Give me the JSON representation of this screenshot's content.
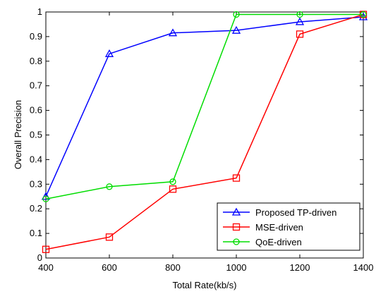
{
  "chart_data": {
    "type": "line",
    "xlabel": "Total Rate(kb/s)",
    "ylabel": "Overall Precision",
    "xlim": [
      400,
      1400
    ],
    "ylim": [
      0,
      1
    ],
    "xticks": [
      400,
      600,
      800,
      1000,
      1200,
      1400
    ],
    "yticks": [
      0,
      0.1,
      0.2,
      0.3,
      0.4,
      0.5,
      0.6,
      0.7,
      0.8,
      0.9,
      1
    ],
    "xtick_labels": [
      "400",
      "600",
      "800",
      "1000",
      "1200",
      "1400"
    ],
    "ytick_labels": [
      "0",
      "0.1",
      "0.2",
      "0.3",
      "0.4",
      "0.5",
      "0.6",
      "0.7",
      "0.8",
      "0.9",
      "1"
    ],
    "grid": false,
    "legend_position": "bottom-right",
    "x": [
      400,
      600,
      800,
      1000,
      1200,
      1400
    ],
    "series": [
      {
        "name": "Proposed TP-driven",
        "color": "#0000ff",
        "marker": "triangle",
        "values": [
          0.25,
          0.83,
          0.915,
          0.925,
          0.96,
          0.98
        ]
      },
      {
        "name": "MSE-driven",
        "color": "#ff0000",
        "marker": "square",
        "values": [
          0.035,
          0.085,
          0.28,
          0.325,
          0.91,
          0.99
        ]
      },
      {
        "name": "QoE-driven",
        "color": "#00dd00",
        "marker": "circle",
        "values": [
          0.24,
          0.29,
          0.31,
          0.99,
          0.99,
          0.99
        ]
      }
    ]
  }
}
